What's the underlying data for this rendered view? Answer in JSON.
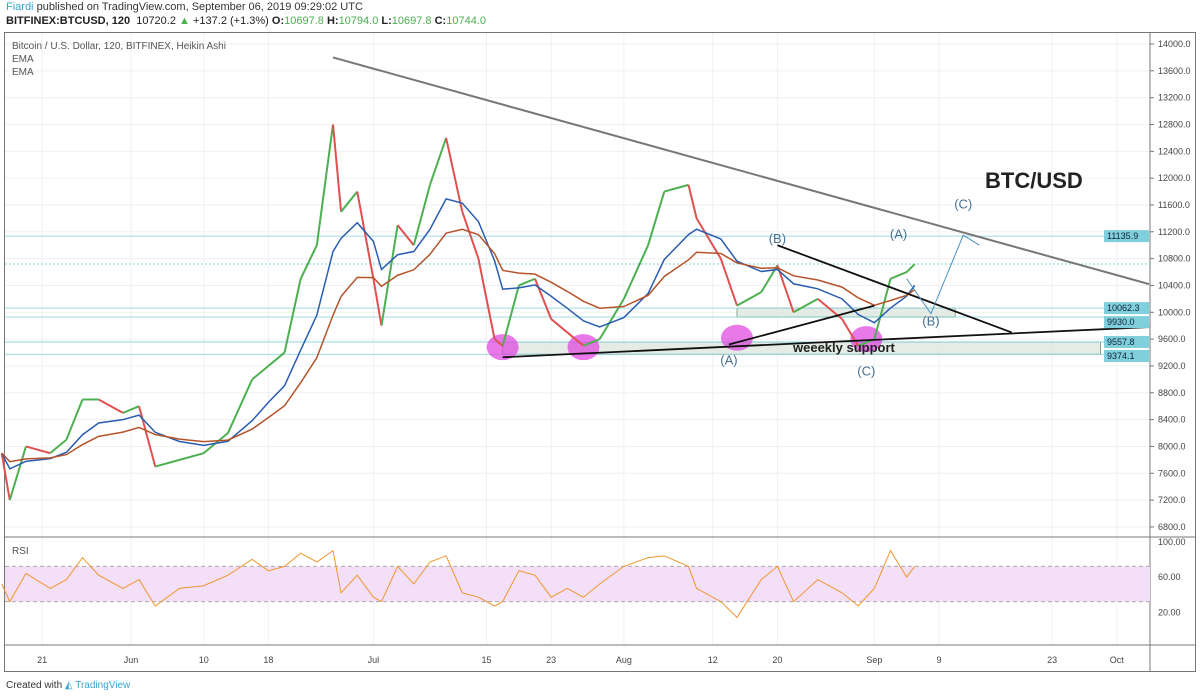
{
  "header": {
    "author": "Fiardi",
    "published": "published on TradingView.com, September 06, 2019 09:29:02 UTC",
    "symbol": "BITFINEX:BTCUSD, 120",
    "last": "10720.2",
    "change": "+137.2 (+1.3%)",
    "o_label": "O:",
    "o": "10697.8",
    "h_label": "H:",
    "h": "10794.0",
    "l_label": "L:",
    "l": "10697.8",
    "c_label": "C:",
    "c": "10744.0"
  },
  "legend": {
    "title": "Bitcoin / U.S. Dollar, 120, BITFINEX, Heikin Ashi",
    "ema1": "EMA",
    "ema2": "EMA"
  },
  "footer": {
    "created": "Created with",
    "brand": "TradingView"
  },
  "colors": {
    "up": "#4caf50",
    "down": "#e05050",
    "ema_fast": "#2a5db0",
    "ema_slow": "#b5532a",
    "rsi": "#f0952e",
    "rsi_band": "#f3e0f8",
    "badge": "#7fcfdc",
    "pink": "#e040e0"
  },
  "chart_data": {
    "type": "line",
    "title": "BTC/USD",
    "price_axis": {
      "ylim": [
        6600,
        14200
      ],
      "ticks": [
        "14000.0",
        "13600.0",
        "13200.0",
        "12800.0",
        "12400.0",
        "12000.0",
        "11600.0",
        "11200.0",
        "10800.0",
        "10400.0",
        "10000.0",
        "9600.0",
        "9200.0",
        "8800.0",
        "8400.0",
        "8000.0",
        "7600.0",
        "7200.0",
        "6800.0"
      ]
    },
    "price_badges": [
      "11135.9",
      "10062.3",
      "9930.0",
      "9557.8",
      "9374.1"
    ],
    "time_axis": {
      "ticks": [
        {
          "label": "21",
          "date": "2019-05-21"
        },
        {
          "label": "Jun",
          "date": "2019-06-01"
        },
        {
          "label": "10",
          "date": "2019-06-10"
        },
        {
          "label": "18",
          "date": "2019-06-18"
        },
        {
          "label": "Jul",
          "date": "2019-07-01"
        },
        {
          "label": "15",
          "date": "2019-07-15"
        },
        {
          "label": "23",
          "date": "2019-07-23"
        },
        {
          "label": "Aug",
          "date": "2019-08-01"
        },
        {
          "label": "12",
          "date": "2019-08-12"
        },
        {
          "label": "20",
          "date": "2019-08-20"
        },
        {
          "label": "Sep",
          "date": "2019-09-01"
        },
        {
          "label": "9",
          "date": "2019-09-09"
        },
        {
          "label": "23",
          "date": "2019-09-23"
        },
        {
          "label": "Oct",
          "date": "2019-10-01"
        }
      ]
    },
    "series": [
      {
        "name": "Price (Heikin Ashi close)",
        "points": [
          [
            "2019-05-16",
            7900
          ],
          [
            "2019-05-17",
            7200
          ],
          [
            "2019-05-19",
            8000
          ],
          [
            "2019-05-22",
            7900
          ],
          [
            "2019-05-24",
            8100
          ],
          [
            "2019-05-26",
            8700
          ],
          [
            "2019-05-28",
            8700
          ],
          [
            "2019-05-31",
            8500
          ],
          [
            "2019-06-02",
            8600
          ],
          [
            "2019-06-04",
            7700
          ],
          [
            "2019-06-07",
            7800
          ],
          [
            "2019-06-10",
            7900
          ],
          [
            "2019-06-13",
            8200
          ],
          [
            "2019-06-16",
            9000
          ],
          [
            "2019-06-18",
            9200
          ],
          [
            "2019-06-20",
            9400
          ],
          [
            "2019-06-22",
            10500
          ],
          [
            "2019-06-24",
            11000
          ],
          [
            "2019-06-26",
            12800
          ],
          [
            "2019-06-27",
            11500
          ],
          [
            "2019-06-29",
            11800
          ],
          [
            "2019-07-01",
            10500
          ],
          [
            "2019-07-02",
            9800
          ],
          [
            "2019-07-04",
            11300
          ],
          [
            "2019-07-06",
            11000
          ],
          [
            "2019-07-08",
            11900
          ],
          [
            "2019-07-10",
            12600
          ],
          [
            "2019-07-12",
            11500
          ],
          [
            "2019-07-14",
            10800
          ],
          [
            "2019-07-16",
            9600
          ],
          [
            "2019-07-17",
            9500
          ],
          [
            "2019-07-19",
            10400
          ],
          [
            "2019-07-21",
            10500
          ],
          [
            "2019-07-23",
            9900
          ],
          [
            "2019-07-25",
            9700
          ],
          [
            "2019-07-27",
            9500
          ],
          [
            "2019-07-29",
            9600
          ],
          [
            "2019-08-01",
            10200
          ],
          [
            "2019-08-04",
            11000
          ],
          [
            "2019-08-06",
            11800
          ],
          [
            "2019-08-09",
            11900
          ],
          [
            "2019-08-10",
            11400
          ],
          [
            "2019-08-13",
            10800
          ],
          [
            "2019-08-15",
            10100
          ],
          [
            "2019-08-18",
            10300
          ],
          [
            "2019-08-20",
            10700
          ],
          [
            "2019-08-22",
            10000
          ],
          [
            "2019-08-25",
            10200
          ],
          [
            "2019-08-28",
            9900
          ],
          [
            "2019-08-30",
            9500
          ],
          [
            "2019-09-01",
            9600
          ],
          [
            "2019-09-03",
            10500
          ],
          [
            "2019-09-05",
            10600
          ],
          [
            "2019-09-06",
            10720
          ]
        ]
      }
    ],
    "ema_periods": [
      10,
      20
    ],
    "rsi": {
      "label": "RSI",
      "ticks": [
        "100.00",
        "60.00",
        "20.00"
      ],
      "band": [
        30,
        70
      ],
      "ylim": [
        0,
        100
      ],
      "points": [
        [
          "2019-05-16",
          50
        ],
        [
          "2019-05-17",
          30
        ],
        [
          "2019-05-19",
          62
        ],
        [
          "2019-05-22",
          45
        ],
        [
          "2019-05-24",
          55
        ],
        [
          "2019-05-26",
          80
        ],
        [
          "2019-05-28",
          60
        ],
        [
          "2019-05-31",
          45
        ],
        [
          "2019-06-02",
          55
        ],
        [
          "2019-06-04",
          25
        ],
        [
          "2019-06-07",
          45
        ],
        [
          "2019-06-10",
          48
        ],
        [
          "2019-06-13",
          60
        ],
        [
          "2019-06-16",
          78
        ],
        [
          "2019-06-18",
          65
        ],
        [
          "2019-06-20",
          70
        ],
        [
          "2019-06-22",
          85
        ],
        [
          "2019-06-24",
          75
        ],
        [
          "2019-06-26",
          88
        ],
        [
          "2019-06-27",
          40
        ],
        [
          "2019-06-29",
          60
        ],
        [
          "2019-07-01",
          35
        ],
        [
          "2019-07-02",
          30
        ],
        [
          "2019-07-04",
          70
        ],
        [
          "2019-07-06",
          50
        ],
        [
          "2019-07-08",
          75
        ],
        [
          "2019-07-10",
          82
        ],
        [
          "2019-07-12",
          40
        ],
        [
          "2019-07-14",
          35
        ],
        [
          "2019-07-16",
          25
        ],
        [
          "2019-07-17",
          30
        ],
        [
          "2019-07-19",
          65
        ],
        [
          "2019-07-21",
          60
        ],
        [
          "2019-07-23",
          35
        ],
        [
          "2019-07-25",
          45
        ],
        [
          "2019-07-27",
          35
        ],
        [
          "2019-07-29",
          50
        ],
        [
          "2019-08-01",
          70
        ],
        [
          "2019-08-04",
          80
        ],
        [
          "2019-08-06",
          82
        ],
        [
          "2019-08-09",
          70
        ],
        [
          "2019-08-10",
          45
        ],
        [
          "2019-08-13",
          30
        ],
        [
          "2019-08-15",
          12
        ],
        [
          "2019-08-18",
          55
        ],
        [
          "2019-08-20",
          70
        ],
        [
          "2019-08-22",
          30
        ],
        [
          "2019-08-25",
          55
        ],
        [
          "2019-08-28",
          40
        ],
        [
          "2019-08-30",
          25
        ],
        [
          "2019-09-01",
          45
        ],
        [
          "2019-09-03",
          88
        ],
        [
          "2019-09-05",
          58
        ],
        [
          "2019-09-06",
          70
        ]
      ]
    },
    "annotations": {
      "lines": [
        {
          "name": "descending-resistance",
          "from": [
            "2019-06-26",
            13800
          ],
          "to": [
            "2019-10-05",
            10420
          ],
          "color": "#777"
        },
        {
          "name": "weekly-support-trendline",
          "from": [
            "2019-07-17",
            9330
          ],
          "to": [
            "2019-10-05",
            9780
          ],
          "color": "#111"
        },
        {
          "name": "triangle-upper",
          "from": [
            "2019-08-20",
            11000
          ],
          "to": [
            "2019-09-18",
            9700
          ],
          "color": "#111"
        },
        {
          "name": "triangle-lower",
          "from": [
            "2019-08-14",
            9520
          ],
          "to": [
            "2019-09-01",
            10100
          ],
          "color": "#111"
        }
      ],
      "zones": [
        {
          "from": [
            "2019-07-17",
            9374.1
          ],
          "to": [
            "2019-09-29",
            9557.8
          ]
        },
        {
          "from": [
            "2019-08-15",
            9930
          ],
          "to": [
            "2019-09-11",
            10062.3
          ]
        }
      ],
      "hlines": [
        11135.9,
        10062.3,
        9930,
        9557.8,
        9374.1
      ],
      "current_price": 10720,
      "waves": [
        {
          "text": "(A)",
          "date": "2019-08-14",
          "price": 9220
        },
        {
          "text": "(B)",
          "date": "2019-08-20",
          "price": 11030
        },
        {
          "text": "(C)",
          "date": "2019-08-31",
          "price": 9180
        },
        {
          "text": "(A)",
          "date": "2019-09-04",
          "price": 11100
        },
        {
          "text": "(B)",
          "date": "2019-09-08",
          "price": 9800
        },
        {
          "text": "(C)",
          "date": "2019-09-12",
          "price": 11550
        }
      ],
      "projection": [
        [
          "2019-09-05",
          10500
        ],
        [
          "2019-09-08",
          9980
        ],
        [
          "2019-09-12",
          11150
        ],
        [
          "2019-09-14",
          11000
        ]
      ],
      "circles": [
        {
          "date": "2019-07-17",
          "price": 9480
        },
        {
          "date": "2019-07-27",
          "price": 9480
        },
        {
          "date": "2019-08-15",
          "price": 9620
        },
        {
          "date": "2019-08-31",
          "price": 9600
        }
      ],
      "support_label": "weeekly support"
    }
  }
}
